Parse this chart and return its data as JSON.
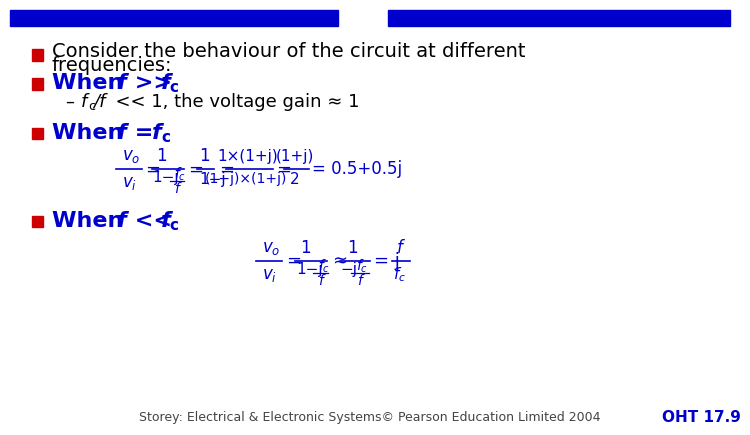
{
  "bg_color": "#ffffff",
  "blue": "#0000cc",
  "red": "#cc0000",
  "black": "#000000",
  "gray": "#444444",
  "footer_text": "Storey: Electrical & Electronic Systems© Pearson Education Limited 2004",
  "footer_right": "OHT 17.9"
}
